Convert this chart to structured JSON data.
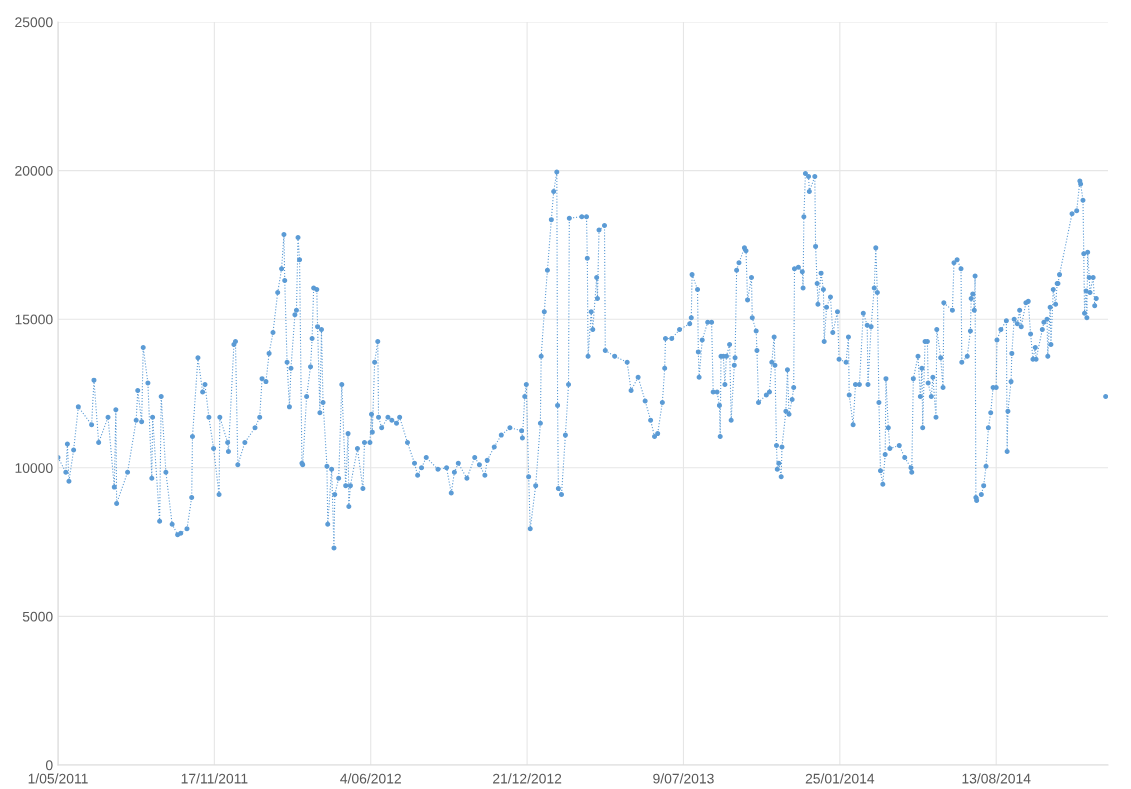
{
  "chart_data": {
    "type": "line",
    "marker": "circle",
    "line_style": "dotted",
    "grid": true,
    "xlim": [
      "2011-05-01",
      "2015-01-03"
    ],
    "xticks": [
      {
        "value": "2011-05-01",
        "label": "1/05/2011"
      },
      {
        "value": "2011-11-17",
        "label": "17/11/2011"
      },
      {
        "value": "2012-06-04",
        "label": "4/06/2012"
      },
      {
        "value": "2012-12-21",
        "label": "21/12/2012"
      },
      {
        "value": "2013-07-09",
        "label": "9/07/2013"
      },
      {
        "value": "2014-01-25",
        "label": "25/01/2014"
      },
      {
        "value": "2014-08-13",
        "label": "13/08/2014"
      }
    ],
    "ylim": [
      0,
      25000
    ],
    "yticks": [
      0,
      5000,
      10000,
      15000,
      20000,
      25000
    ],
    "series": [
      {
        "color": "#5b9bd5",
        "x": [
          "2011-05-01",
          "2011-05-11",
          "2011-05-13",
          "2011-05-15",
          "2011-05-21",
          "2011-05-27",
          "2011-06-13",
          "2011-06-16",
          "2011-06-22",
          "2011-07-04",
          "2011-07-12",
          "2011-07-14",
          "2011-07-15",
          "2011-07-29",
          "2011-08-09",
          "2011-08-11",
          "2011-08-16",
          "2011-08-18",
          "2011-08-24",
          "2011-08-29",
          "2011-08-30",
          "2011-09-08",
          "2011-09-10",
          "2011-09-16",
          "2011-09-24",
          "2011-10-01",
          "2011-10-05",
          "2011-10-13",
          "2011-10-19",
          "2011-10-20",
          "2011-10-27",
          "2011-11-02",
          "2011-11-05",
          "2011-11-10",
          "2011-11-16",
          "2011-11-23",
          "2011-11-24",
          "2011-12-04",
          "2011-12-05",
          "2011-12-12",
          "2011-12-14",
          "2011-12-17",
          "2011-12-26",
          "2012-01-08",
          "2012-01-14",
          "2012-01-17",
          "2012-01-22",
          "2012-01-26",
          "2012-01-31",
          "2012-02-06",
          "2012-02-11",
          "2012-02-14",
          "2012-02-15",
          "2012-02-18",
          "2012-02-21",
          "2012-02-23",
          "2012-02-28",
          "2012-03-01",
          "2012-03-03",
          "2012-03-05",
          "2012-03-08",
          "2012-03-09",
          "2012-03-14",
          "2012-03-19",
          "2012-03-21",
          "2012-03-23",
          "2012-03-27",
          "2012-03-28",
          "2012-03-31",
          "2012-04-02",
          "2012-04-04",
          "2012-04-09",
          "2012-04-10",
          "2012-04-15",
          "2012-04-18",
          "2012-04-19",
          "2012-04-24",
          "2012-04-28",
          "2012-05-03",
          "2012-05-06",
          "2012-05-07",
          "2012-05-09",
          "2012-05-18",
          "2012-05-25",
          "2012-05-27",
          "2012-06-03",
          "2012-06-05",
          "2012-06-06",
          "2012-06-09",
          "2012-06-13",
          "2012-06-14",
          "2012-06-18",
          "2012-06-26",
          "2012-07-01",
          "2012-07-07",
          "2012-07-11",
          "2012-07-21",
          "2012-07-30",
          "2012-08-03",
          "2012-08-08",
          "2012-08-14",
          "2012-08-29",
          "2012-09-09",
          "2012-09-15",
          "2012-09-19",
          "2012-09-24",
          "2012-10-05",
          "2012-10-15",
          "2012-10-21",
          "2012-10-28",
          "2012-10-31",
          "2012-11-09",
          "2012-11-18",
          "2012-11-29",
          "2012-12-14",
          "2012-12-15",
          "2012-12-18",
          "2012-12-20",
          "2012-12-23",
          "2012-12-25",
          "2013-01-01",
          "2013-01-07",
          "2013-01-08",
          "2013-01-12",
          "2013-01-16",
          "2013-01-21",
          "2013-01-24",
          "2013-01-28",
          "2013-01-29",
          "2013-01-30",
          "2013-02-03",
          "2013-02-08",
          "2013-02-12",
          "2013-02-13",
          "2013-03-01",
          "2013-03-07",
          "2013-03-08",
          "2013-03-09",
          "2013-03-13",
          "2013-03-15",
          "2013-03-20",
          "2013-03-21",
          "2013-03-23",
          "2013-03-30",
          "2013-03-31",
          "2013-04-12",
          "2013-04-28",
          "2013-05-03",
          "2013-05-12",
          "2013-05-21",
          "2013-05-28",
          "2013-06-02",
          "2013-06-06",
          "2013-06-12",
          "2013-06-15",
          "2013-06-16",
          "2013-06-24",
          "2013-07-04",
          "2013-07-17",
          "2013-07-19",
          "2013-07-20",
          "2013-07-27",
          "2013-07-28",
          "2013-07-29",
          "2013-08-02",
          "2013-08-09",
          "2013-08-14",
          "2013-08-16",
          "2013-08-21",
          "2013-08-24",
          "2013-08-25",
          "2013-08-26",
          "2013-08-29",
          "2013-08-31",
          "2013-09-02",
          "2013-09-06",
          "2013-09-08",
          "2013-09-12",
          "2013-09-13",
          "2013-09-15",
          "2013-09-18",
          "2013-09-25",
          "2013-09-27",
          "2013-09-29",
          "2013-10-04",
          "2013-10-05",
          "2013-10-10",
          "2013-10-11",
          "2013-10-13",
          "2013-10-23",
          "2013-10-27",
          "2013-10-30",
          "2013-11-02",
          "2013-11-03",
          "2013-11-05",
          "2013-11-06",
          "2013-11-08",
          "2013-11-11",
          "2013-11-12",
          "2013-11-17",
          "2013-11-19",
          "2013-11-21",
          "2013-11-25",
          "2013-11-27",
          "2013-11-28",
          "2013-12-03",
          "2013-12-08",
          "2013-12-09",
          "2013-12-10",
          "2013-12-12",
          "2013-12-16",
          "2013-12-17",
          "2013-12-24",
          "2013-12-25",
          "2013-12-27",
          "2013-12-28",
          "2014-01-01",
          "2014-01-04",
          "2014-01-05",
          "2014-01-08",
          "2014-01-13",
          "2014-01-16",
          "2014-01-22",
          "2014-01-24",
          "2014-02-02",
          "2014-02-05",
          "2014-02-06",
          "2014-02-11",
          "2014-02-14",
          "2014-02-19",
          "2014-02-24",
          "2014-03-01",
          "2014-03-02",
          "2014-03-06",
          "2014-03-10",
          "2014-03-12",
          "2014-03-14",
          "2014-03-16",
          "2014-03-18",
          "2014-03-21",
          "2014-03-24",
          "2014-03-25",
          "2014-03-28",
          "2014-03-30",
          "2014-04-11",
          "2014-04-18",
          "2014-04-26",
          "2014-04-27",
          "2014-04-29",
          "2014-05-05",
          "2014-05-08",
          "2014-05-10",
          "2014-05-11",
          "2014-05-14",
          "2014-05-17",
          "2014-05-18",
          "2014-05-22",
          "2014-05-24",
          "2014-05-28",
          "2014-05-29",
          "2014-06-03",
          "2014-06-06",
          "2014-06-07",
          "2014-06-18",
          "2014-06-20",
          "2014-06-24",
          "2014-06-29",
          "2014-06-30",
          "2014-07-07",
          "2014-07-11",
          "2014-07-12",
          "2014-07-14",
          "2014-07-16",
          "2014-07-17",
          "2014-07-18",
          "2014-07-19",
          "2014-07-25",
          "2014-07-28",
          "2014-07-31",
          "2014-08-03",
          "2014-08-06",
          "2014-08-09",
          "2014-08-13",
          "2014-08-14",
          "2014-08-19",
          "2014-08-26",
          "2014-08-27",
          "2014-08-28",
          "2014-09-01",
          "2014-09-02",
          "2014-09-05",
          "2014-09-09",
          "2014-09-12",
          "2014-09-14",
          "2014-09-20",
          "2014-09-23",
          "2014-09-26",
          "2014-09-29",
          "2014-10-02",
          "2014-10-03",
          "2014-10-11",
          "2014-10-13",
          "2014-10-17",
          "2014-10-18",
          "2014-10-21",
          "2014-10-22",
          "2014-10-25",
          "2014-10-28",
          "2014-10-30",
          "2014-10-31",
          "2014-11-02",
          "2014-11-18",
          "2014-11-24",
          "2014-11-28",
          "2014-11-29",
          "2014-12-02",
          "2014-12-03",
          "2014-12-04",
          "2014-12-06",
          "2014-12-07",
          "2014-12-08",
          "2014-12-10",
          "2014-12-11",
          "2014-12-15",
          "2014-12-17",
          "2014-12-19",
          "2014-12-25",
          "2014-12-31"
        ],
        "values": [
          10350,
          9850,
          10800,
          9550,
          10600,
          12050,
          11450,
          12950,
          10850,
          11700,
          9350,
          11950,
          8800,
          9850,
          11600,
          12600,
          11550,
          14050,
          12850,
          9650,
          11700,
          8200,
          12400,
          9850,
          8100,
          7750,
          7800,
          7950,
          9000,
          11050,
          13700,
          12550,
          12800,
          11700,
          10650,
          9100,
          11700,
          10850,
          10550,
          14150,
          14250,
          10100,
          10850,
          11350,
          11700,
          13000,
          12900,
          13850,
          14550,
          15900,
          16700,
          17850,
          16300,
          13550,
          12050,
          13350,
          15150,
          15300,
          17750,
          17000,
          10150,
          10100,
          12400,
          13400,
          14350,
          16050,
          16000,
          14750,
          11850,
          14650,
          12200,
          10050,
          8100,
          9950,
          7300,
          9100,
          9650,
          12800,
          9400,
          11150,
          8700,
          9400,
          10650,
          9300,
          10850,
          10850,
          11800,
          11200,
          13550,
          14250,
          11700,
          11350,
          11700,
          11600,
          11500,
          11700,
          10850,
          10150,
          9750,
          10000,
          10350,
          9950,
          10000,
          9150,
          9850,
          10150,
          9650,
          10350,
          10100,
          9750,
          10250,
          10700,
          11100,
          11350,
          11250,
          11000,
          12400,
          12800,
          9700,
          7950,
          9400,
          11500,
          13750,
          15250,
          16650,
          18350,
          19300,
          19950,
          12100,
          9300,
          9100,
          11100,
          12800,
          18400,
          18450,
          18450,
          17050,
          13750,
          15250,
          14650,
          16400,
          15700,
          18000,
          18150,
          13950,
          13750,
          13550,
          12600,
          13050,
          12250,
          11600,
          11050,
          11150,
          12200,
          13350,
          14350,
          14350,
          14650,
          14850,
          15050,
          16500,
          16000,
          13900,
          13050,
          14300,
          14900,
          14900,
          12550,
          12550,
          12100,
          11050,
          13750,
          13750,
          12800,
          13750,
          14150,
          11600,
          13450,
          13700,
          16650,
          16900,
          17400,
          17300,
          15650,
          16400,
          15050,
          14600,
          13950,
          12200,
          12450,
          12550,
          13550,
          14400,
          13450,
          10750,
          9950,
          10150,
          9700,
          10700,
          11900,
          13300,
          11800,
          12300,
          12700,
          16700,
          16750,
          16600,
          16050,
          18450,
          19900,
          19800,
          19300,
          19800,
          17450,
          16200,
          15500,
          16550,
          16000,
          14250,
          15400,
          15750,
          14550,
          15250,
          13650,
          13550,
          14400,
          12450,
          11450,
          12800,
          12800,
          15200,
          14800,
          12800,
          14750,
          16050,
          17400,
          15900,
          12200,
          9900,
          9450,
          10450,
          13000,
          11350,
          10650,
          10750,
          10350,
          10000,
          9850,
          13000,
          13750,
          12400,
          13350,
          11350,
          14250,
          14250,
          12850,
          12400,
          13050,
          11700,
          14650,
          13700,
          12700,
          15550,
          15300,
          16900,
          17000,
          16700,
          13550,
          13750,
          14600,
          15700,
          15850,
          15300,
          16450,
          9000,
          8900,
          9100,
          9400,
          10050,
          11350,
          11850,
          12700,
          12700,
          14300,
          14650,
          14950,
          10550,
          11900,
          12900,
          13850,
          15000,
          14850,
          15300,
          14750,
          15550,
          15600,
          14500,
          13650,
          14050,
          13650,
          14650,
          14900,
          15000,
          13750,
          15400,
          14150,
          16000,
          15500,
          16200,
          16200,
          16500,
          18550,
          18650,
          19650,
          19550,
          19000,
          17200,
          15200,
          15950,
          15050,
          17250,
          16400,
          15900,
          16400,
          15450,
          15700,
          null,
          12400
        ]
      }
    ]
  }
}
